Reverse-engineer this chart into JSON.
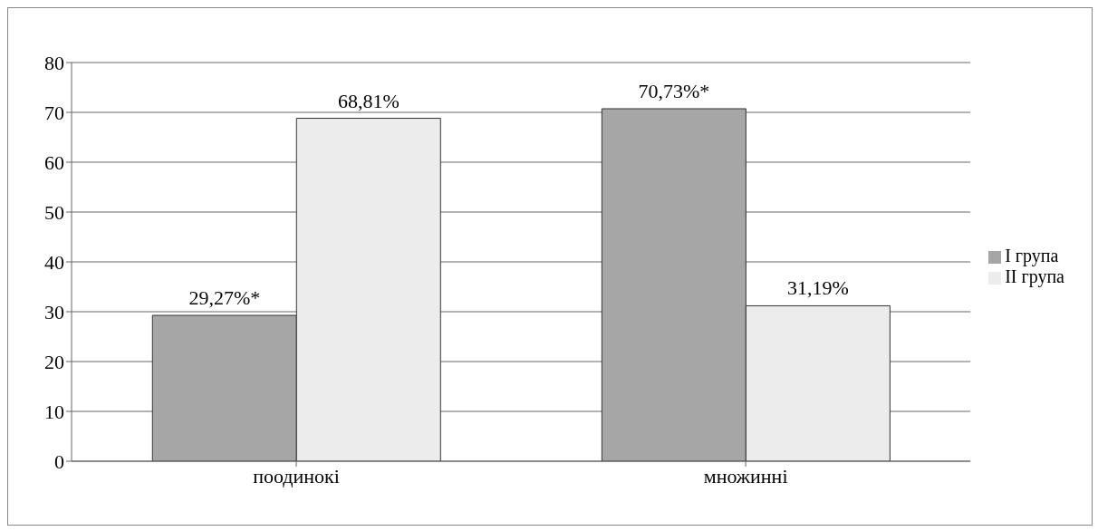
{
  "chart_data": {
    "type": "bar",
    "categories": [
      "поодинокі",
      "множинні"
    ],
    "series": [
      {
        "name": "I група",
        "color": "#a6a6a6",
        "values": [
          29.27,
          70.73
        ],
        "value_labels": [
          "29,27%*",
          "70,73%*"
        ]
      },
      {
        "name": "II група",
        "color": "#ececec",
        "values": [
          68.81,
          31.19
        ],
        "value_labels": [
          "68,81%",
          "31,19%"
        ]
      }
    ],
    "ylim": [
      0,
      80
    ],
    "yticks": [
      0,
      10,
      20,
      30,
      40,
      50,
      60,
      70,
      80
    ],
    "grid": "y",
    "legend": "right"
  }
}
